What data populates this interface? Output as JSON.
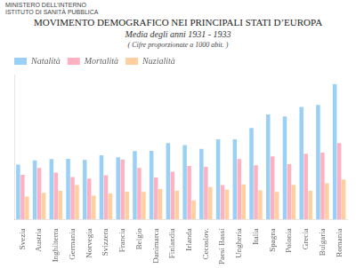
{
  "chart_data": {
    "type": "bar",
    "title": "MOVIMENTO DEMOGRAFICO NEI PRINCIPALI STATI D’EUROPA",
    "subtitle": "Media degli anni  1931 - 1933",
    "annotations": [
      "MINISTERO DELL’INTERNO",
      "ISTITUTO DI SANITÀ PUBBLICA",
      "( Cifre proporzionate a 1000 abit. )"
    ],
    "categories": [
      "Svezia",
      "Austria",
      "Inghilterra",
      "Germania",
      "Norvegia",
      "Svizzera",
      "Francia",
      "Belgio",
      "Danimarca",
      "Finlandia",
      "Irlanda",
      "Cecoslov.",
      "Paesi Bassi",
      "Ungheria",
      "Italia",
      "Spagna",
      "Polonia",
      "Grecia",
      "Bulgaria",
      "Romania"
    ],
    "series": [
      {
        "name": "Natalità",
        "values": [
          14.4,
          15.5,
          15.8,
          15.9,
          15.6,
          16.8,
          16.3,
          17.9,
          18.0,
          20.0,
          19.5,
          18.5,
          21.0,
          21.0,
          24.0,
          27.5,
          27.0,
          29.5,
          30.0,
          35.5
        ]
      },
      {
        "name": "Mortalità",
        "values": [
          11.7,
          13.5,
          12.3,
          11.1,
          10.7,
          11.6,
          15.7,
          13.5,
          11.0,
          12.5,
          14.0,
          13.8,
          9.0,
          15.8,
          14.2,
          16.5,
          14.5,
          17.2,
          17.5,
          20.0
        ]
      },
      {
        "name": "Nuzialità",
        "values": [
          6.0,
          7.0,
          7.5,
          9.0,
          6.2,
          6.8,
          7.3,
          7.2,
          8.0,
          7.5,
          5.0,
          8.5,
          7.8,
          9.2,
          7.6,
          7.2,
          9.0,
          7.5,
          9.5,
          10.5
        ]
      }
    ],
    "ylim": [
      0,
      38
    ],
    "grid": false,
    "legend": "upper left",
    "tick_labels": "x"
  }
}
